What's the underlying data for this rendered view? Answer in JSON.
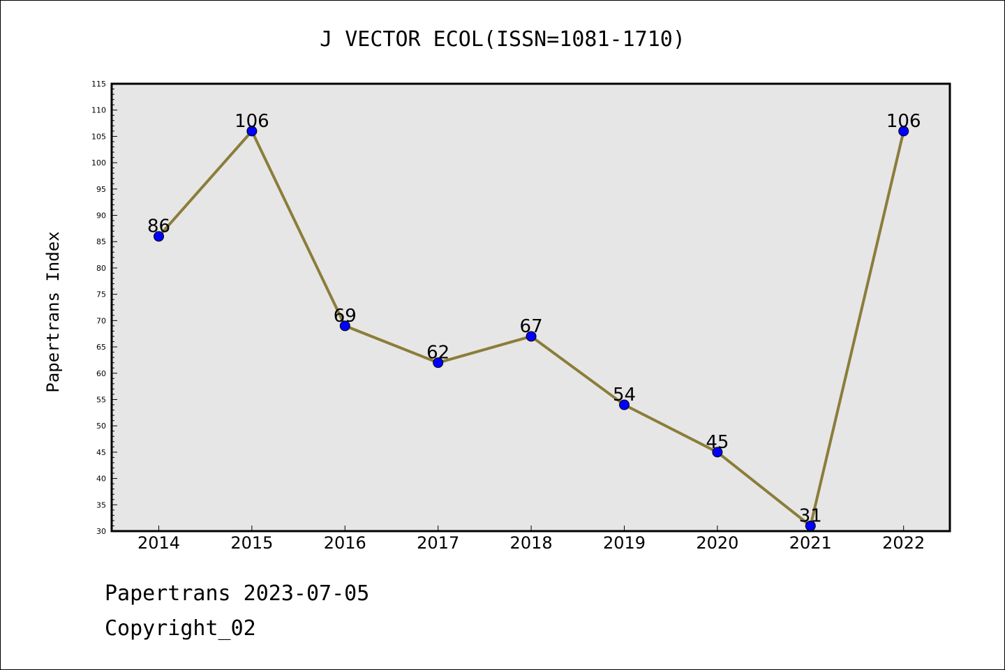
{
  "chart_data": {
    "type": "line",
    "title": "J VECTOR ECOL(ISSN=1081-1710)",
    "xlabel": "",
    "ylabel": "Papertrans Index",
    "categories": [
      "2014",
      "2015",
      "2016",
      "2017",
      "2018",
      "2019",
      "2020",
      "2021",
      "2022"
    ],
    "series": [
      {
        "values": [
          86,
          106,
          69,
          62,
          67,
          54,
          45,
          31,
          106
        ]
      }
    ],
    "ylim": [
      30,
      115
    ],
    "yticks": [
      30,
      35,
      40,
      45,
      50,
      55,
      60,
      65,
      70,
      75,
      80,
      85,
      90,
      95,
      100,
      105,
      110,
      115
    ],
    "data_labels": true,
    "grid": false,
    "colors": {
      "line": "#8b7d3a",
      "marker": "#0000ff",
      "plot_background": "#e6e6e6"
    }
  },
  "footer": {
    "date_line": "Papertrans 2023-07-05",
    "copyright_line": "Copyright_02"
  }
}
